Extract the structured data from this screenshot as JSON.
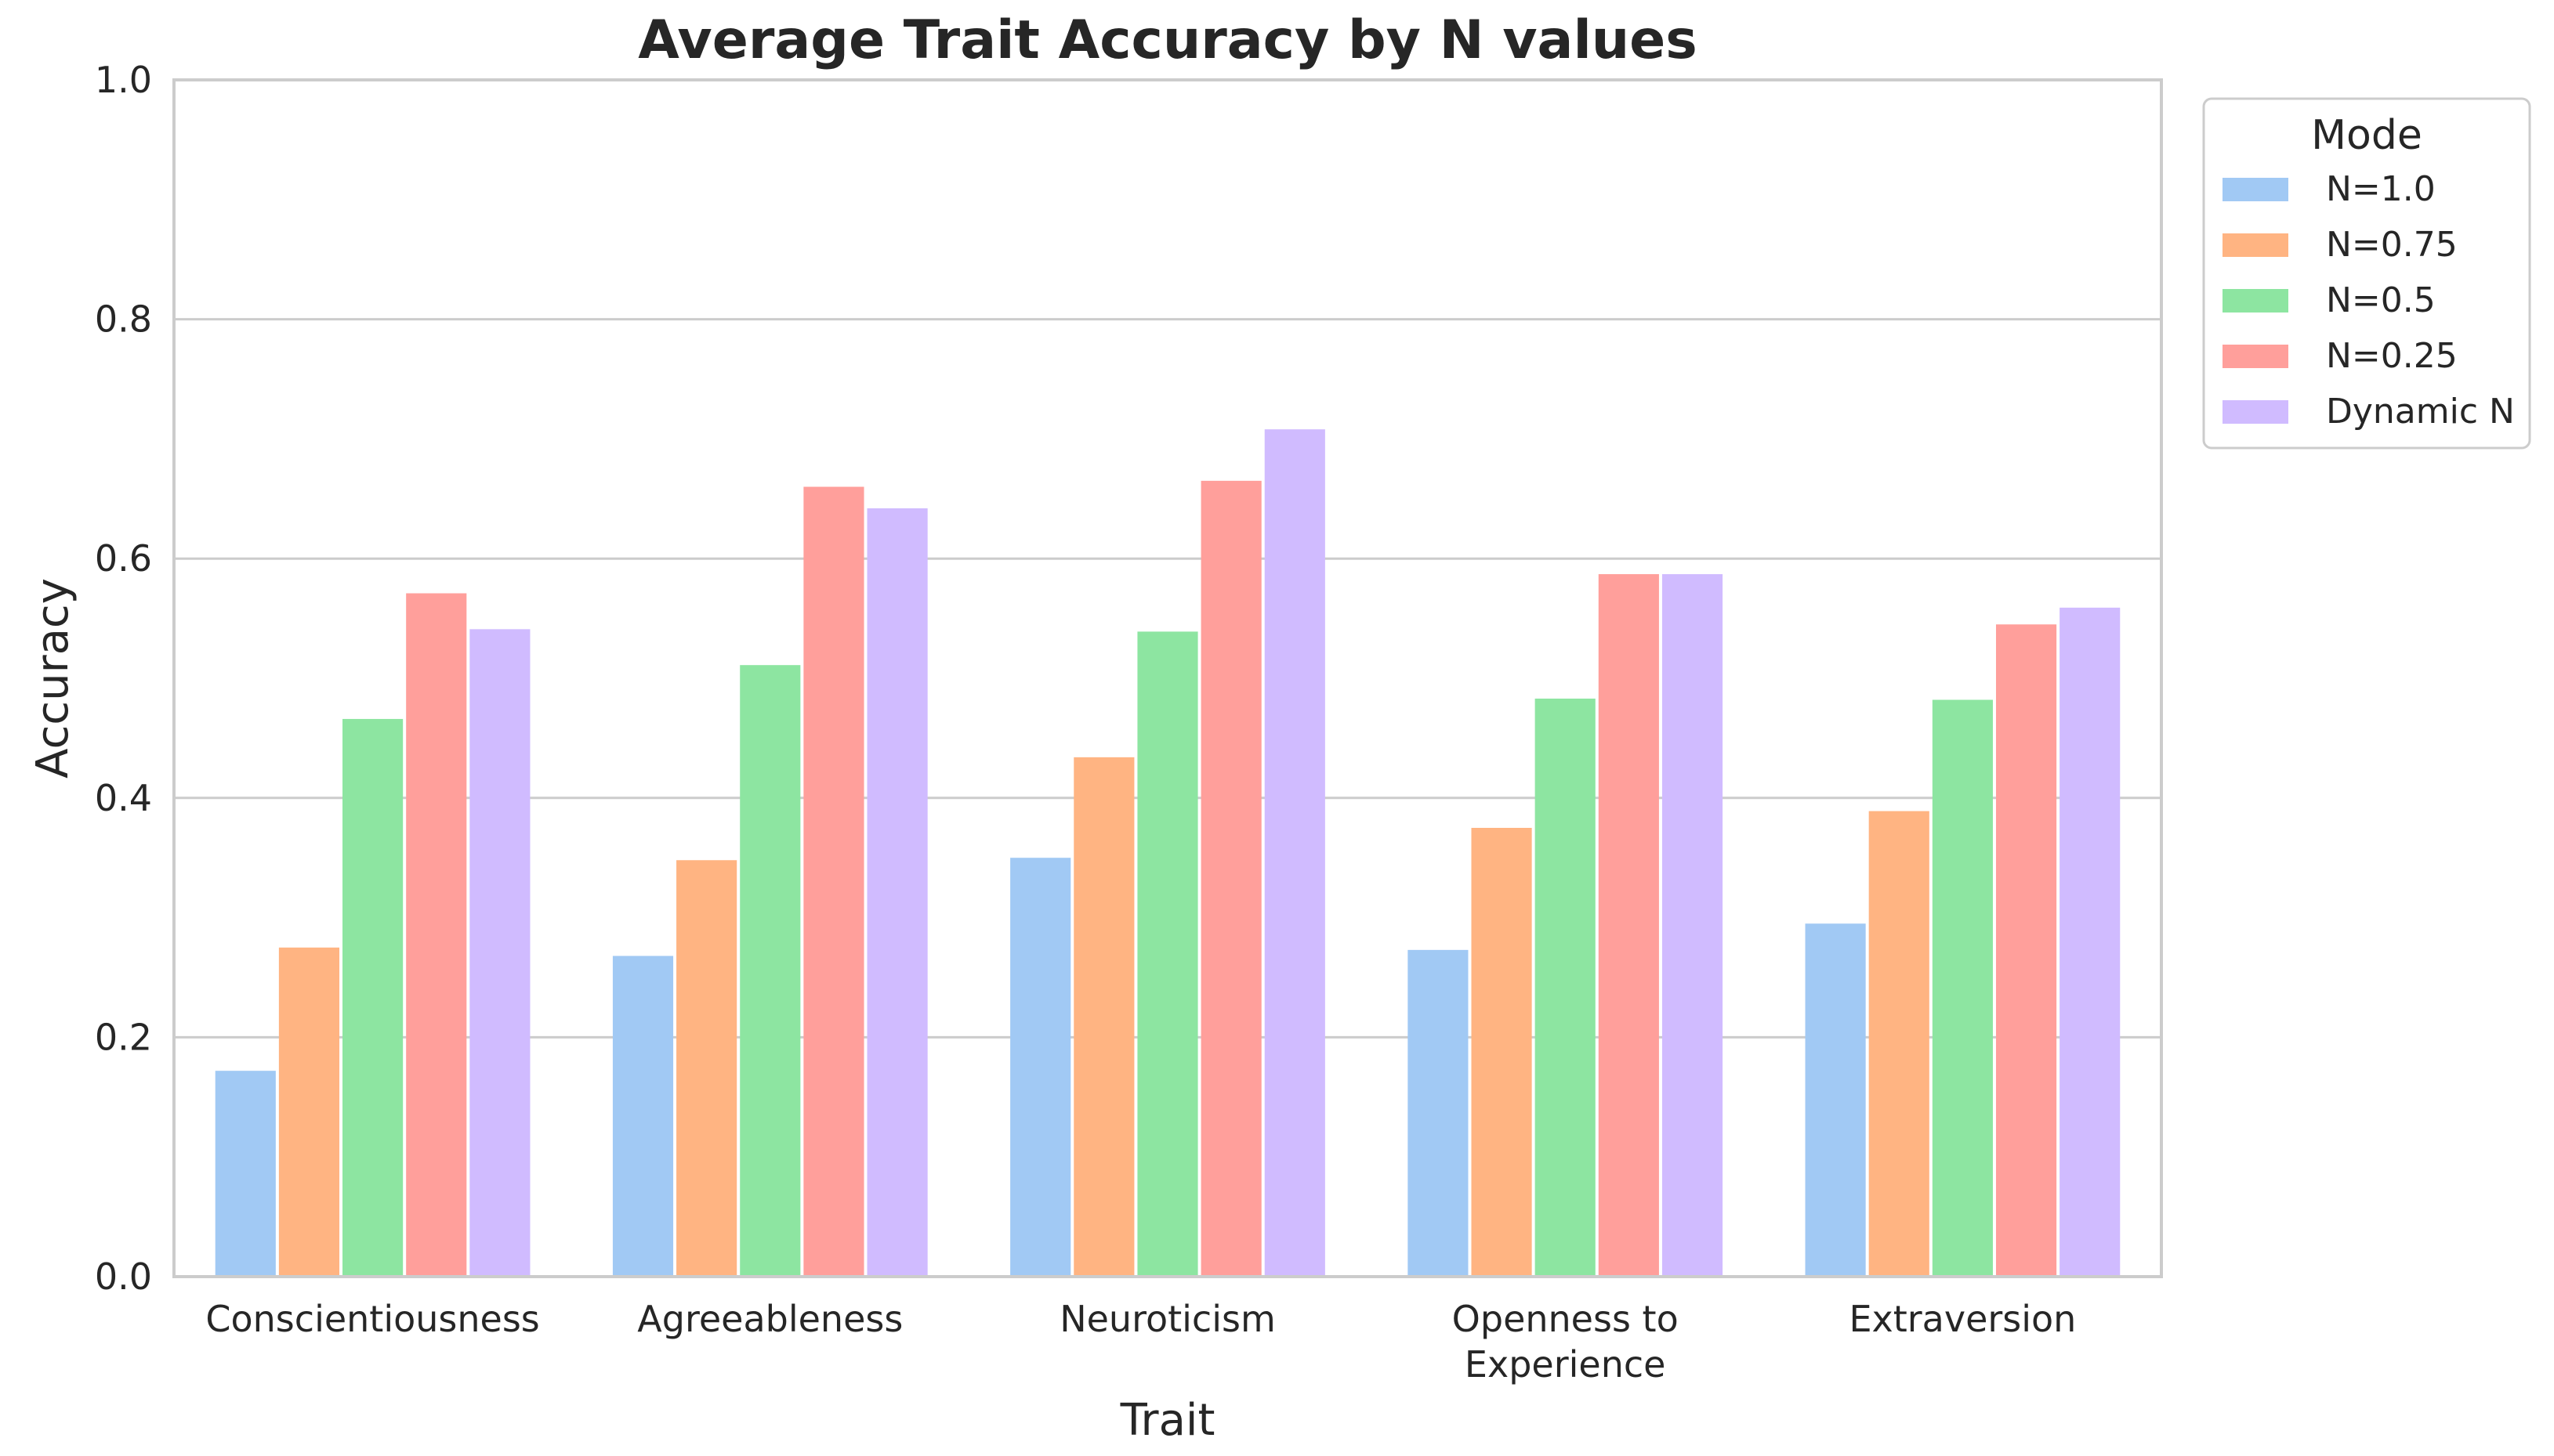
{
  "chart_data": {
    "type": "bar",
    "title": "Average Trait Accuracy by N values",
    "xlabel": "Trait",
    "ylabel": "Accuracy",
    "ylim": [
      0,
      1.0
    ],
    "yticks": [
      "0.0",
      "0.2",
      "0.4",
      "0.6",
      "0.8",
      "1.0"
    ],
    "grid": "horizontal",
    "categories": [
      "Conscientiousness",
      "Agreeableness",
      "Neuroticism",
      "Openness to Experience",
      "Extraversion"
    ],
    "category_lines": [
      [
        "Conscientiousness"
      ],
      [
        "Agreeableness"
      ],
      [
        "Neuroticism"
      ],
      [
        "Openness to",
        "Experience"
      ],
      [
        "Extraversion"
      ]
    ],
    "legend": {
      "title": "Mode",
      "placement": "outside right"
    },
    "series": [
      {
        "name": "N=1.0",
        "color": "#a1c9f4",
        "values": [
          0.172,
          0.268,
          0.35,
          0.273,
          0.295
        ]
      },
      {
        "name": "N=0.75",
        "color": "#ffb482",
        "values": [
          0.275,
          0.348,
          0.434,
          0.375,
          0.389
        ]
      },
      {
        "name": "N=0.5",
        "color": "#8de5a1",
        "values": [
          0.466,
          0.511,
          0.539,
          0.483,
          0.482
        ]
      },
      {
        "name": "N=0.25",
        "color": "#ff9f9b",
        "values": [
          0.571,
          0.66,
          0.665,
          0.587,
          0.545
        ]
      },
      {
        "name": "Dynamic N",
        "color": "#d0bbff",
        "values": [
          0.541,
          0.642,
          0.708,
          0.587,
          0.559
        ]
      }
    ]
  }
}
